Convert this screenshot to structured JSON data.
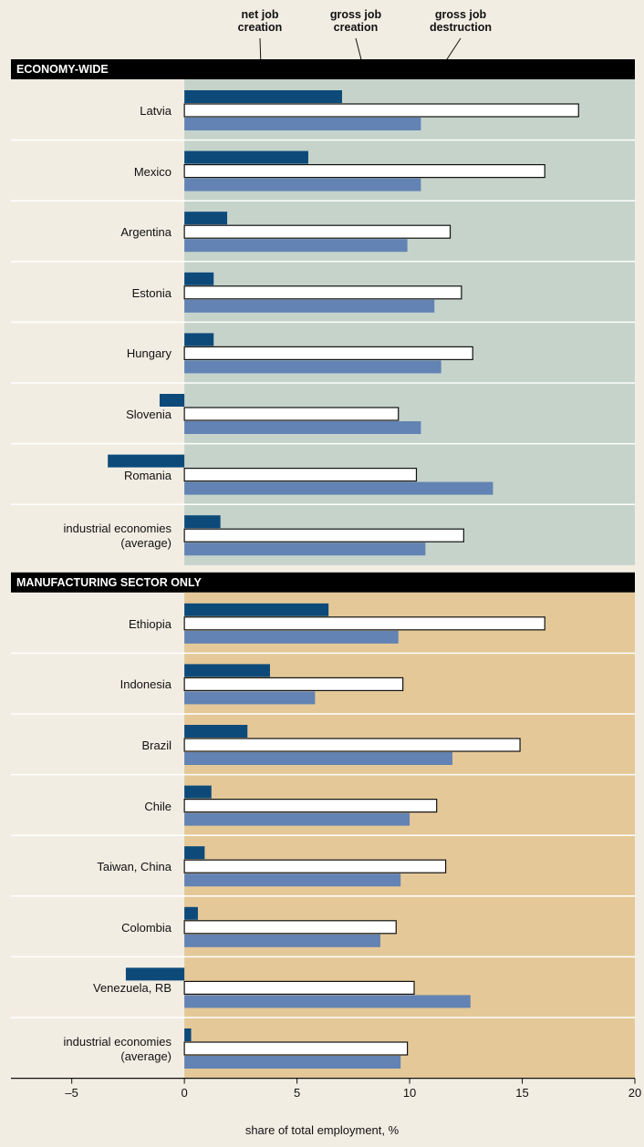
{
  "chart_data": {
    "type": "bar",
    "sections": [
      {
        "title": "ECONOMY-WIDE",
        "background": "#c5d3cb",
        "categories": [
          "Latvia",
          "Mexico",
          "Argentina",
          "Estonia",
          "Hungary",
          "Slovenia",
          "Romania",
          "industrial economies\n(average)"
        ]
      },
      {
        "title": "MANUFACTURING SECTOR ONLY",
        "background": "#e4c898",
        "categories": [
          "Ethiopia",
          "Indonesia",
          "Brazil",
          "Chile",
          "Taiwan, China",
          "Colombia",
          "Venezuela, RB",
          "industrial economies\n(average)"
        ]
      }
    ],
    "series": [
      {
        "name": "net job\ncreation",
        "color": "#0d4a7a",
        "values": [
          7.0,
          5.5,
          1.9,
          1.3,
          1.3,
          -1.1,
          -3.4,
          1.6,
          6.4,
          3.8,
          2.8,
          1.2,
          0.9,
          0.6,
          -2.6,
          0.3
        ]
      },
      {
        "name": "gross job\ncreation",
        "color": "#ffffff",
        "values": [
          17.5,
          16.0,
          11.8,
          12.3,
          12.8,
          9.5,
          10.3,
          12.4,
          16.0,
          9.7,
          14.9,
          11.2,
          11.6,
          9.4,
          10.2,
          9.9
        ]
      },
      {
        "name": "gross job\ndestruction",
        "color": "#6283b3",
        "values": [
          10.5,
          10.5,
          9.9,
          11.1,
          11.4,
          10.5,
          13.7,
          10.7,
          9.5,
          5.8,
          11.9,
          10.0,
          9.6,
          8.7,
          12.7,
          9.6
        ]
      }
    ],
    "xlim": [
      -7.7,
      20
    ],
    "xticks": [
      {
        "value": -5,
        "label": "–5"
      },
      0,
      5,
      10,
      15,
      20
    ],
    "xlabel": "share of total employment, %"
  }
}
